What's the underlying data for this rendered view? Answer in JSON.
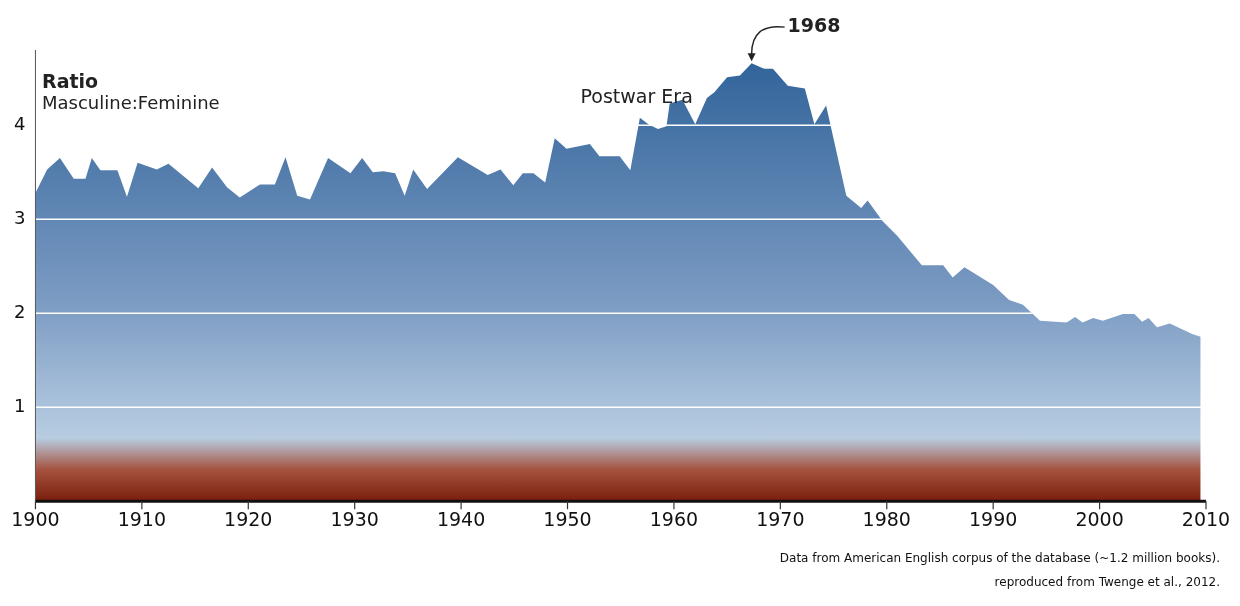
{
  "chart_data": {
    "type": "area",
    "title": "Ratio",
    "subtitle": "Masculine:Feminine",
    "x": [
      1900,
      1901.1,
      1902.3,
      1903.6,
      1904.7,
      1905.3,
      1906.1,
      1907.7,
      1908.6,
      1909.6,
      1911.4,
      1912.5,
      1915.3,
      1916.6,
      1918,
      1919.2,
      1921.1,
      1922.5,
      1923.5,
      1924.6,
      1925.8,
      1927.5,
      1929.6,
      1930.7,
      1931.7,
      1932.7,
      1933.8,
      1934.7,
      1935.5,
      1936.8,
      1939.7,
      1942.5,
      1943.7,
      1944.9,
      1945.8,
      1946.8,
      1947.9,
      1948.8,
      1949.9,
      1952.1,
      1953,
      1954.9,
      1955.9,
      1956.8,
      1957.6,
      1958.5,
      1959.3,
      1959.6,
      1960.8,
      1962,
      1963.1,
      1963.8,
      1965,
      1966.2,
      1967.3,
      1968.5,
      1969.3,
      1970.7,
      1972.3,
      1973.2,
      1974.3,
      1976.2,
      1977.6,
      1978.2,
      1979.6,
      1981,
      1983.3,
      1985.3,
      1986.2,
      1987.3,
      1990,
      1991.5,
      1992.8,
      1994.4,
      1996.9,
      1997.7,
      1998.4,
      1999.4,
      2000.3,
      2002.4,
      2003.2,
      2004,
      2004.6,
      2005.4,
      2006.6,
      2008.7,
      2009.5
    ],
    "series": [
      {
        "color": "#2e6198",
        "values": [
          3.28,
          3.53,
          3.65,
          3.43,
          3.43,
          3.65,
          3.52,
          3.52,
          3.24,
          3.6,
          3.53,
          3.59,
          3.33,
          3.55,
          3.34,
          3.23,
          3.37,
          3.37,
          3.66,
          3.25,
          3.21,
          3.65,
          3.49,
          3.65,
          3.5,
          3.51,
          3.49,
          3.25,
          3.53,
          3.32,
          3.66,
          3.47,
          3.53,
          3.36,
          3.49,
          3.49,
          3.39,
          3.86,
          3.75,
          3.8,
          3.67,
          3.67,
          3.52,
          4.08,
          4.01,
          3.96,
          3.99,
          4.23,
          4.27,
          4.01,
          4.29,
          4.35,
          4.51,
          4.53,
          4.66,
          4.6,
          4.6,
          4.42,
          4.39,
          4.01,
          4.21,
          3.25,
          3.12,
          3.2,
          2.98,
          2.82,
          2.51,
          2.51,
          2.38,
          2.49,
          2.3,
          2.14,
          2.09,
          1.92,
          1.9,
          1.96,
          1.9,
          1.95,
          1.92,
          2,
          2,
          1.91,
          1.95,
          1.85,
          1.89,
          1.78,
          1.75
        ]
      }
    ],
    "xlim": [
      1900,
      2010
    ],
    "xticks": [
      1900,
      1910,
      1920,
      1930,
      1940,
      1950,
      1960,
      1970,
      1980,
      1990,
      2000,
      2010
    ],
    "ylim": [
      0,
      4.8
    ],
    "yticks": [
      1,
      2,
      3,
      4
    ],
    "grid": "y",
    "legend": false,
    "annotations": [
      "Postwar Era",
      {
        "text": "1968",
        "x": 1967.3,
        "y": 4.66
      },
      "Data from American English corpus of the database (~1.2 million books).",
      "reproduced from Twenge et al., 2012."
    ]
  }
}
